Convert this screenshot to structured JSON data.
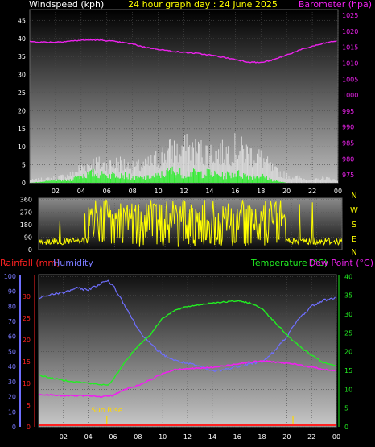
{
  "header": {
    "left_label": "Windspeed (kph)",
    "title": "24 hour graph day : 24 June 2025",
    "right_label": "Barometer (hpa)"
  },
  "labels": {
    "rainfall": "Rainfall (mm)",
    "humidity": "Humidity",
    "temperature": "Temperature (°C)",
    "dewpoint": "Dew Point (°C)",
    "sunrise": "Sun Rise"
  },
  "colors": {
    "wind_gust": "#d8d8d8",
    "wind_avg": "#33ee33",
    "barometer": "#ee22ee",
    "direction": "#ffff00",
    "humidity": "#6f6fff",
    "temperature": "#22ee22",
    "dewpoint": "#ee22ee",
    "rain": "#ff2222",
    "left_axis_top": "#ffffff",
    "compass_text": "#ffff00"
  },
  "chart_data": [
    {
      "type": "line",
      "name": "wind-barometer",
      "xticks": [
        "02",
        "04",
        "06",
        "08",
        "10",
        "12",
        "14",
        "16",
        "18",
        "20",
        "22",
        "00"
      ],
      "y_left_ticks": [
        "0",
        "5",
        "10",
        "15",
        "20",
        "25",
        "30",
        "35",
        "40",
        "45"
      ],
      "y_left_range": [
        0,
        48
      ],
      "y_right_ticks": [
        "975",
        "980",
        "985",
        "990",
        "995",
        "1000",
        "1005",
        "1010",
        "1015",
        "1020",
        "1025"
      ],
      "y_right_range": [
        972.5,
        1026.8
      ],
      "barometer": [
        [
          0,
          1016.8
        ],
        [
          1,
          1016.6
        ],
        [
          2,
          1016.6
        ],
        [
          3,
          1016.9
        ],
        [
          4,
          1017.2
        ],
        [
          5,
          1017.3
        ],
        [
          6,
          1017.1
        ],
        [
          7,
          1016.6
        ],
        [
          8,
          1016.0
        ],
        [
          9,
          1015.0
        ],
        [
          10,
          1014.4
        ],
        [
          11,
          1013.8
        ],
        [
          12,
          1013.4
        ],
        [
          13,
          1013.1
        ],
        [
          14,
          1012.6
        ],
        [
          15,
          1011.9
        ],
        [
          16,
          1011.2
        ],
        [
          17,
          1010.4
        ],
        [
          18,
          1010.2
        ],
        [
          19,
          1011.1
        ],
        [
          20,
          1012.6
        ],
        [
          21,
          1014.1
        ],
        [
          22,
          1015.3
        ],
        [
          23,
          1016.3
        ],
        [
          24,
          1017.1
        ]
      ],
      "wind_gust_envelope": [
        [
          0,
          1
        ],
        [
          2,
          2
        ],
        [
          3,
          3
        ],
        [
          4,
          6
        ],
        [
          5,
          8
        ],
        [
          6,
          7
        ],
        [
          7,
          8
        ],
        [
          8,
          6
        ],
        [
          9,
          7
        ],
        [
          10,
          10
        ],
        [
          11,
          13
        ],
        [
          12,
          14
        ],
        [
          13,
          13
        ],
        [
          14,
          12
        ],
        [
          15,
          12
        ],
        [
          16,
          14
        ],
        [
          17,
          12
        ],
        [
          18,
          10
        ],
        [
          19,
          5
        ],
        [
          20,
          3
        ],
        [
          21,
          2
        ],
        [
          22,
          1
        ],
        [
          23,
          2
        ],
        [
          24,
          1
        ]
      ],
      "wind_avg_envelope": [
        [
          0,
          0
        ],
        [
          2,
          1
        ],
        [
          3,
          1
        ],
        [
          4,
          3
        ],
        [
          5,
          4
        ],
        [
          6,
          3
        ],
        [
          7,
          4
        ],
        [
          8,
          2
        ],
        [
          9,
          2
        ],
        [
          10,
          3
        ],
        [
          11,
          5
        ],
        [
          12,
          4
        ],
        [
          13,
          4
        ],
        [
          14,
          4
        ],
        [
          15,
          3
        ],
        [
          16,
          4
        ],
        [
          17,
          3
        ],
        [
          18,
          3
        ],
        [
          19,
          1
        ],
        [
          20,
          0
        ],
        [
          21,
          0
        ],
        [
          22,
          0
        ],
        [
          23,
          0
        ],
        [
          24,
          0
        ]
      ]
    },
    {
      "type": "line",
      "name": "wind-direction",
      "y_ticks": [
        "0",
        "90",
        "180",
        "270",
        "360"
      ],
      "y_range": [
        0,
        370
      ],
      "compass": [
        "N",
        "W",
        "S",
        "E",
        "N"
      ],
      "active_start_hour": 4.0,
      "active_end_hour": 19.5,
      "quiet_level_deg": 60
    },
    {
      "type": "line",
      "name": "temperature-humidity",
      "xticks": [
        "02",
        "04",
        "06",
        "08",
        "10",
        "12",
        "14",
        "16",
        "18",
        "20",
        "22",
        "00"
      ],
      "rain_ticks": [
        "0",
        "5",
        "10",
        "15",
        "20",
        "25",
        "30"
      ],
      "humidity_ticks": [
        "0",
        "10",
        "20",
        "30",
        "40",
        "50",
        "60",
        "70",
        "80",
        "90",
        "100"
      ],
      "humidity_range": [
        0,
        101
      ],
      "temp_ticks": [
        "0",
        "5",
        "10",
        "15",
        "20",
        "25",
        "30",
        "35",
        "40"
      ],
      "temp_range": [
        0,
        40.5
      ],
      "rain_total_mm": 0,
      "sunrise_hour": 5.5,
      "sunset_hour": 20.5,
      "humidity": [
        [
          0,
          85
        ],
        [
          1,
          88
        ],
        [
          2,
          89
        ],
        [
          3,
          92
        ],
        [
          4,
          91
        ],
        [
          5,
          95
        ],
        [
          5.5,
          97
        ],
        [
          6,
          94
        ],
        [
          7,
          80
        ],
        [
          8,
          65
        ],
        [
          9,
          55
        ],
        [
          10,
          48
        ],
        [
          11,
          44
        ],
        [
          12,
          42
        ],
        [
          13,
          40
        ],
        [
          14,
          37
        ],
        [
          15,
          38
        ],
        [
          16,
          40
        ],
        [
          17,
          42
        ],
        [
          18,
          43
        ],
        [
          19,
          50
        ],
        [
          20,
          60
        ],
        [
          21,
          72
        ],
        [
          22,
          80
        ],
        [
          23,
          84
        ],
        [
          24,
          86
        ]
      ],
      "temperature": [
        [
          0,
          13.8
        ],
        [
          1,
          13.0
        ],
        [
          2,
          12.4
        ],
        [
          3,
          12.0
        ],
        [
          4,
          11.6
        ],
        [
          5,
          11.2
        ],
        [
          5.7,
          11.3
        ],
        [
          6,
          12.5
        ],
        [
          7,
          17.5
        ],
        [
          8,
          21.5
        ],
        [
          9,
          24.5
        ],
        [
          10,
          29.0
        ],
        [
          11,
          31.0
        ],
        [
          12,
          32.0
        ],
        [
          13,
          32.5
        ],
        [
          14,
          33.0
        ],
        [
          15,
          33.2
        ],
        [
          16,
          33.5
        ],
        [
          17,
          33.0
        ],
        [
          18,
          31.5
        ],
        [
          19,
          28.0
        ],
        [
          20,
          24.5
        ],
        [
          21,
          21.5
        ],
        [
          22,
          19.0
        ],
        [
          23,
          17.0
        ],
        [
          24,
          16.2
        ]
      ],
      "dewpoint": [
        [
          0,
          8.5
        ],
        [
          1,
          8.5
        ],
        [
          2,
          8.3
        ],
        [
          3,
          8.3
        ],
        [
          4,
          8.2
        ],
        [
          5,
          8.0
        ],
        [
          6,
          8.4
        ],
        [
          7,
          10.0
        ],
        [
          8,
          11.0
        ],
        [
          9,
          12.5
        ],
        [
          10,
          14.2
        ],
        [
          11,
          15.3
        ],
        [
          12,
          15.5
        ],
        [
          13,
          15.6
        ],
        [
          14,
          15.8
        ],
        [
          15,
          16.2
        ],
        [
          16,
          16.8
        ],
        [
          17,
          17.2
        ],
        [
          18,
          17.5
        ],
        [
          19,
          17.3
        ],
        [
          20,
          16.9
        ],
        [
          21,
          16.5
        ],
        [
          22,
          15.9
        ],
        [
          23,
          15.3
        ],
        [
          24,
          14.8
        ]
      ]
    }
  ]
}
